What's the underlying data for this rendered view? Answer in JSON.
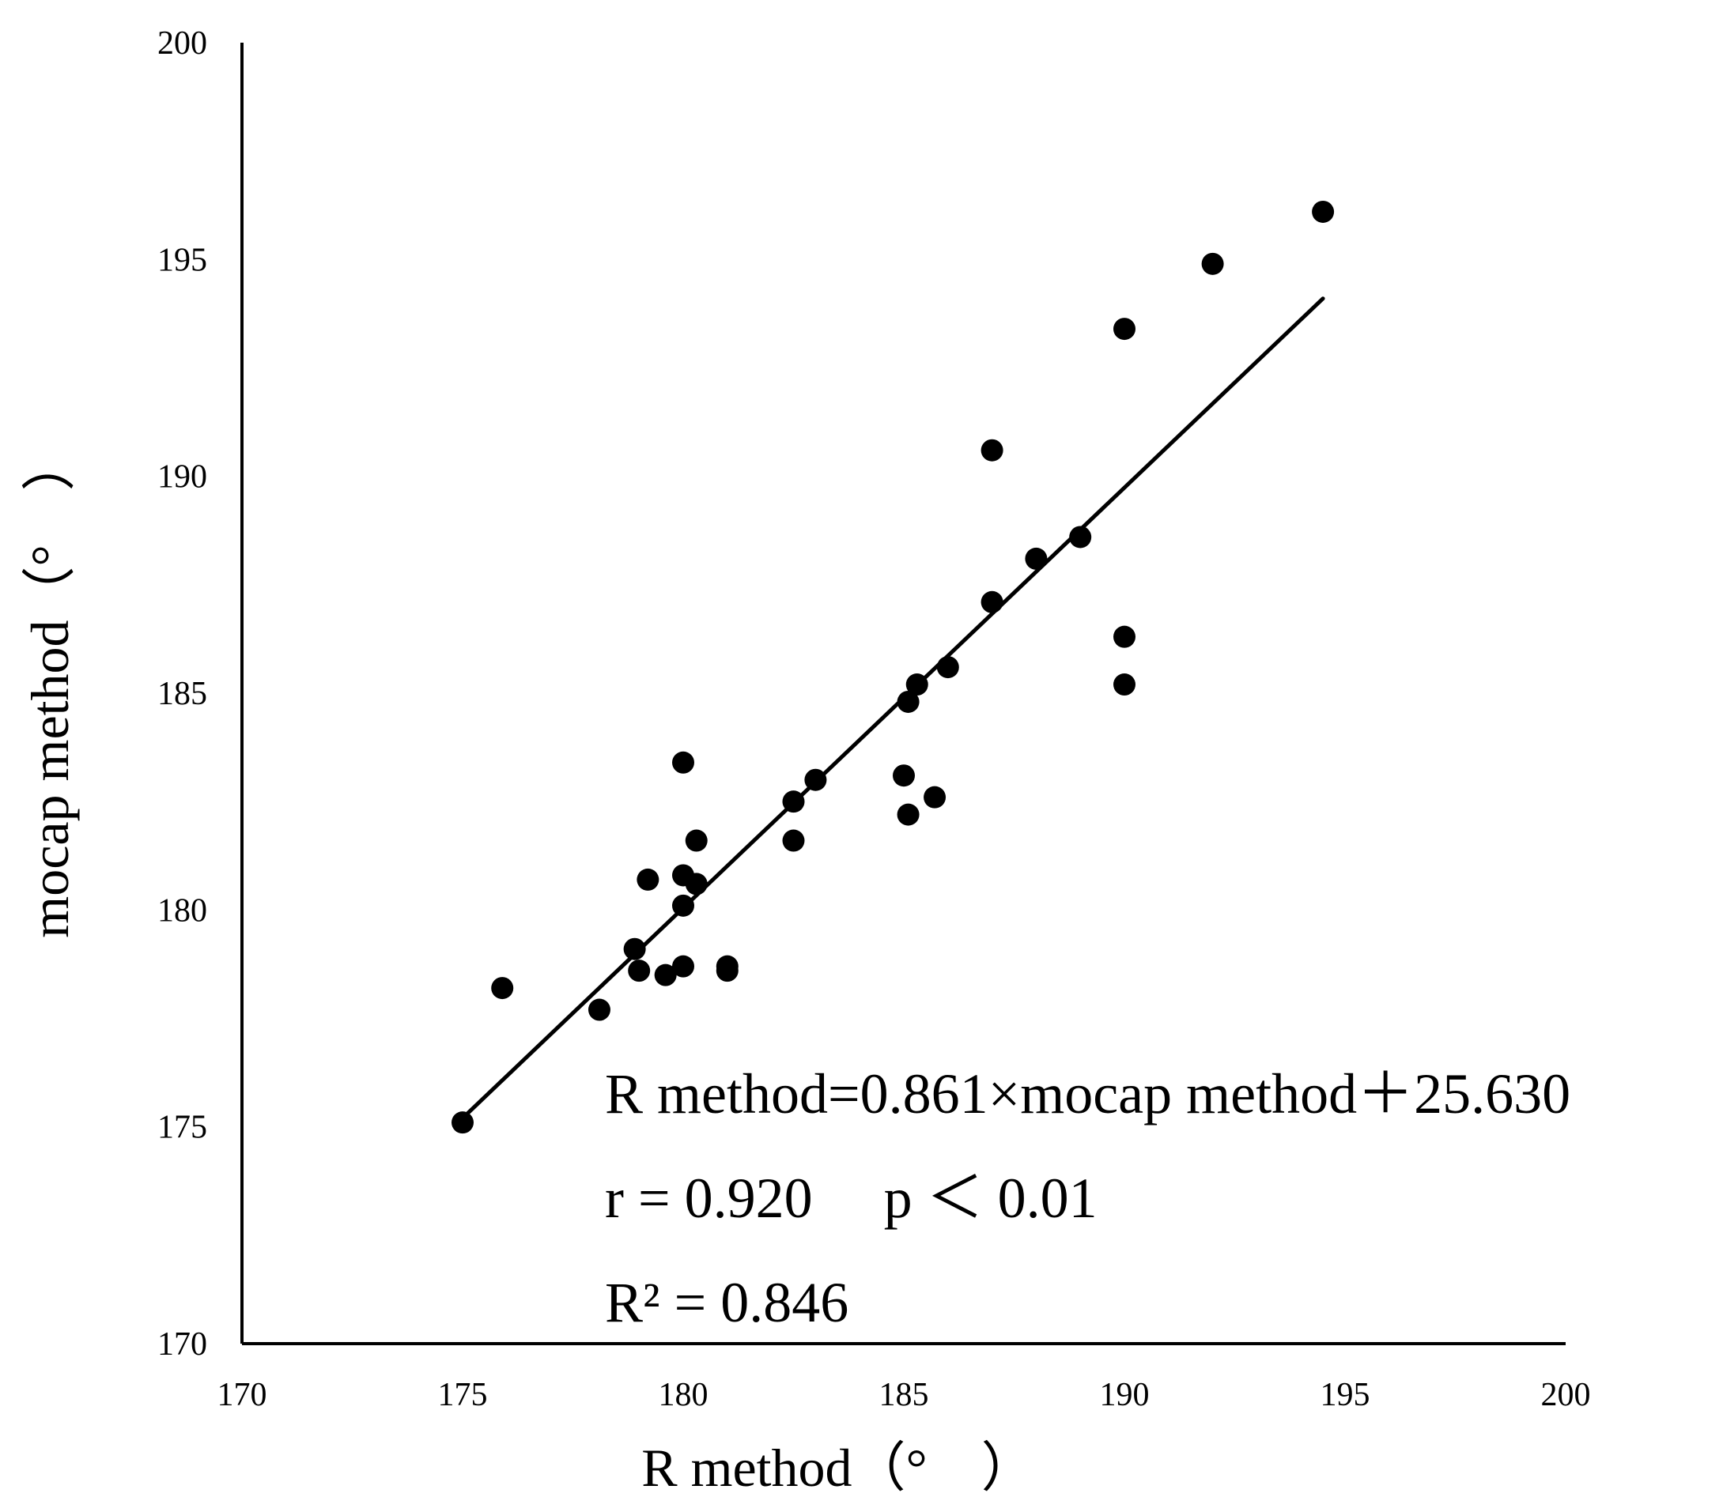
{
  "chart_data": {
    "type": "scatter",
    "title": "",
    "xlabel": "R method（°　）",
    "ylabel": "mocap method（°　）",
    "xlim": [
      170,
      200
    ],
    "ylim": [
      170,
      200
    ],
    "xticks": [
      "170",
      "175",
      "180",
      "185",
      "190",
      "195",
      "200"
    ],
    "yticks": [
      "170",
      "175",
      "180",
      "185",
      "190",
      "195",
      "200"
    ],
    "grid": false,
    "legend": "none",
    "series": [
      {
        "name": "measurements",
        "marker": "circle",
        "color": "#000000",
        "points": [
          [
            175.0,
            175.1
          ],
          [
            175.9,
            178.2
          ],
          [
            178.1,
            177.7
          ],
          [
            178.9,
            179.1
          ],
          [
            179.0,
            178.6
          ],
          [
            179.2,
            180.7
          ],
          [
            179.6,
            178.5
          ],
          [
            180.0,
            183.4
          ],
          [
            180.0,
            180.8
          ],
          [
            180.0,
            180.1
          ],
          [
            180.0,
            178.7
          ],
          [
            180.3,
            181.6
          ],
          [
            180.3,
            180.6
          ],
          [
            181.0,
            178.7
          ],
          [
            181.0,
            178.6
          ],
          [
            182.5,
            182.5
          ],
          [
            182.5,
            181.6
          ],
          [
            183.0,
            183.0
          ],
          [
            185.0,
            183.1
          ],
          [
            185.1,
            184.8
          ],
          [
            185.1,
            182.2
          ],
          [
            185.3,
            185.2
          ],
          [
            185.7,
            182.6
          ],
          [
            186.0,
            185.6
          ],
          [
            187.0,
            190.6
          ],
          [
            187.0,
            187.1
          ],
          [
            188.0,
            188.1
          ],
          [
            189.0,
            188.6
          ],
          [
            190.0,
            193.4
          ],
          [
            190.0,
            186.3
          ],
          [
            190.0,
            185.2
          ],
          [
            192.0,
            194.9
          ],
          [
            194.5,
            196.1
          ]
        ]
      }
    ],
    "trendline": {
      "x": [
        175.0,
        194.5
      ],
      "y": [
        175.2,
        194.1
      ],
      "color": "#000000"
    },
    "annotations": [
      "R method=0.861×mocap method＋25.630",
      "r = 0.920　 p ＜ 0.01",
      "R² = 0.846"
    ]
  }
}
